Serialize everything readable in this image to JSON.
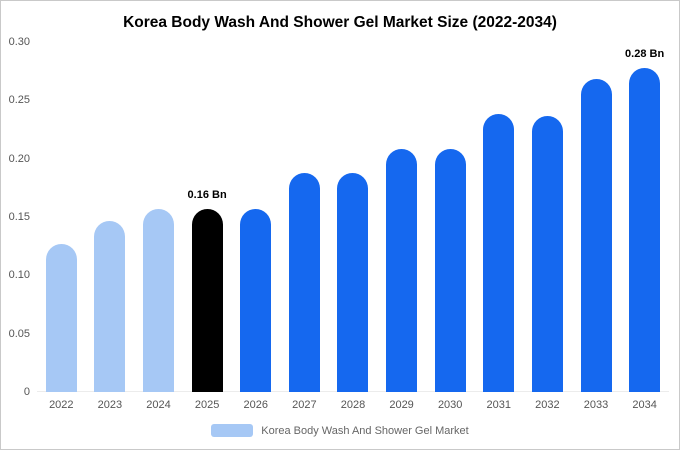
{
  "chart_data": {
    "type": "bar",
    "title": "Korea Body Wash And Shower Gel Market Size (2022-2034)",
    "categories": [
      "2022",
      "2023",
      "2024",
      "2025",
      "2026",
      "2027",
      "2028",
      "2029",
      "2030",
      "2031",
      "2032",
      "2033",
      "2034"
    ],
    "values": [
      0.127,
      0.147,
      0.157,
      0.157,
      0.157,
      0.188,
      0.188,
      0.208,
      0.208,
      0.238,
      0.237,
      0.268,
      0.278
    ],
    "unit": "Bn",
    "bar_colors": [
      "#a6c8f5",
      "#a6c8f5",
      "#a6c8f5",
      "#000000",
      "#1568ef",
      "#1568ef",
      "#1568ef",
      "#1568ef",
      "#1568ef",
      "#1568ef",
      "#1568ef",
      "#1568ef",
      "#1568ef"
    ],
    "annotations": [
      {
        "category": "2025",
        "text": "0.16 Bn"
      },
      {
        "category": "2034",
        "text": "0.28 Bn"
      }
    ],
    "ylim": [
      0,
      0.3
    ],
    "yticks": [
      {
        "value": 0.3,
        "label": "0.30"
      },
      {
        "value": 0.25,
        "label": "0.25"
      },
      {
        "value": 0.2,
        "label": "0.20"
      },
      {
        "value": 0.15,
        "label": "0.15"
      },
      {
        "value": 0.1,
        "label": "0.10"
      },
      {
        "value": 0.05,
        "label": "0.05"
      },
      {
        "value": 0,
        "label": "0"
      }
    ],
    "grid": false,
    "legend_position": "bottom",
    "legend": {
      "label": "Korea Body Wash And Shower Gel Market",
      "swatch_color": "#a6c8f5"
    }
  },
  "colors": {
    "historical_bar": "#a6c8f5",
    "base_year_bar": "#000000",
    "forecast_bar": "#1568ef",
    "axis_text": "#555555",
    "annotation_text": "#000000"
  }
}
